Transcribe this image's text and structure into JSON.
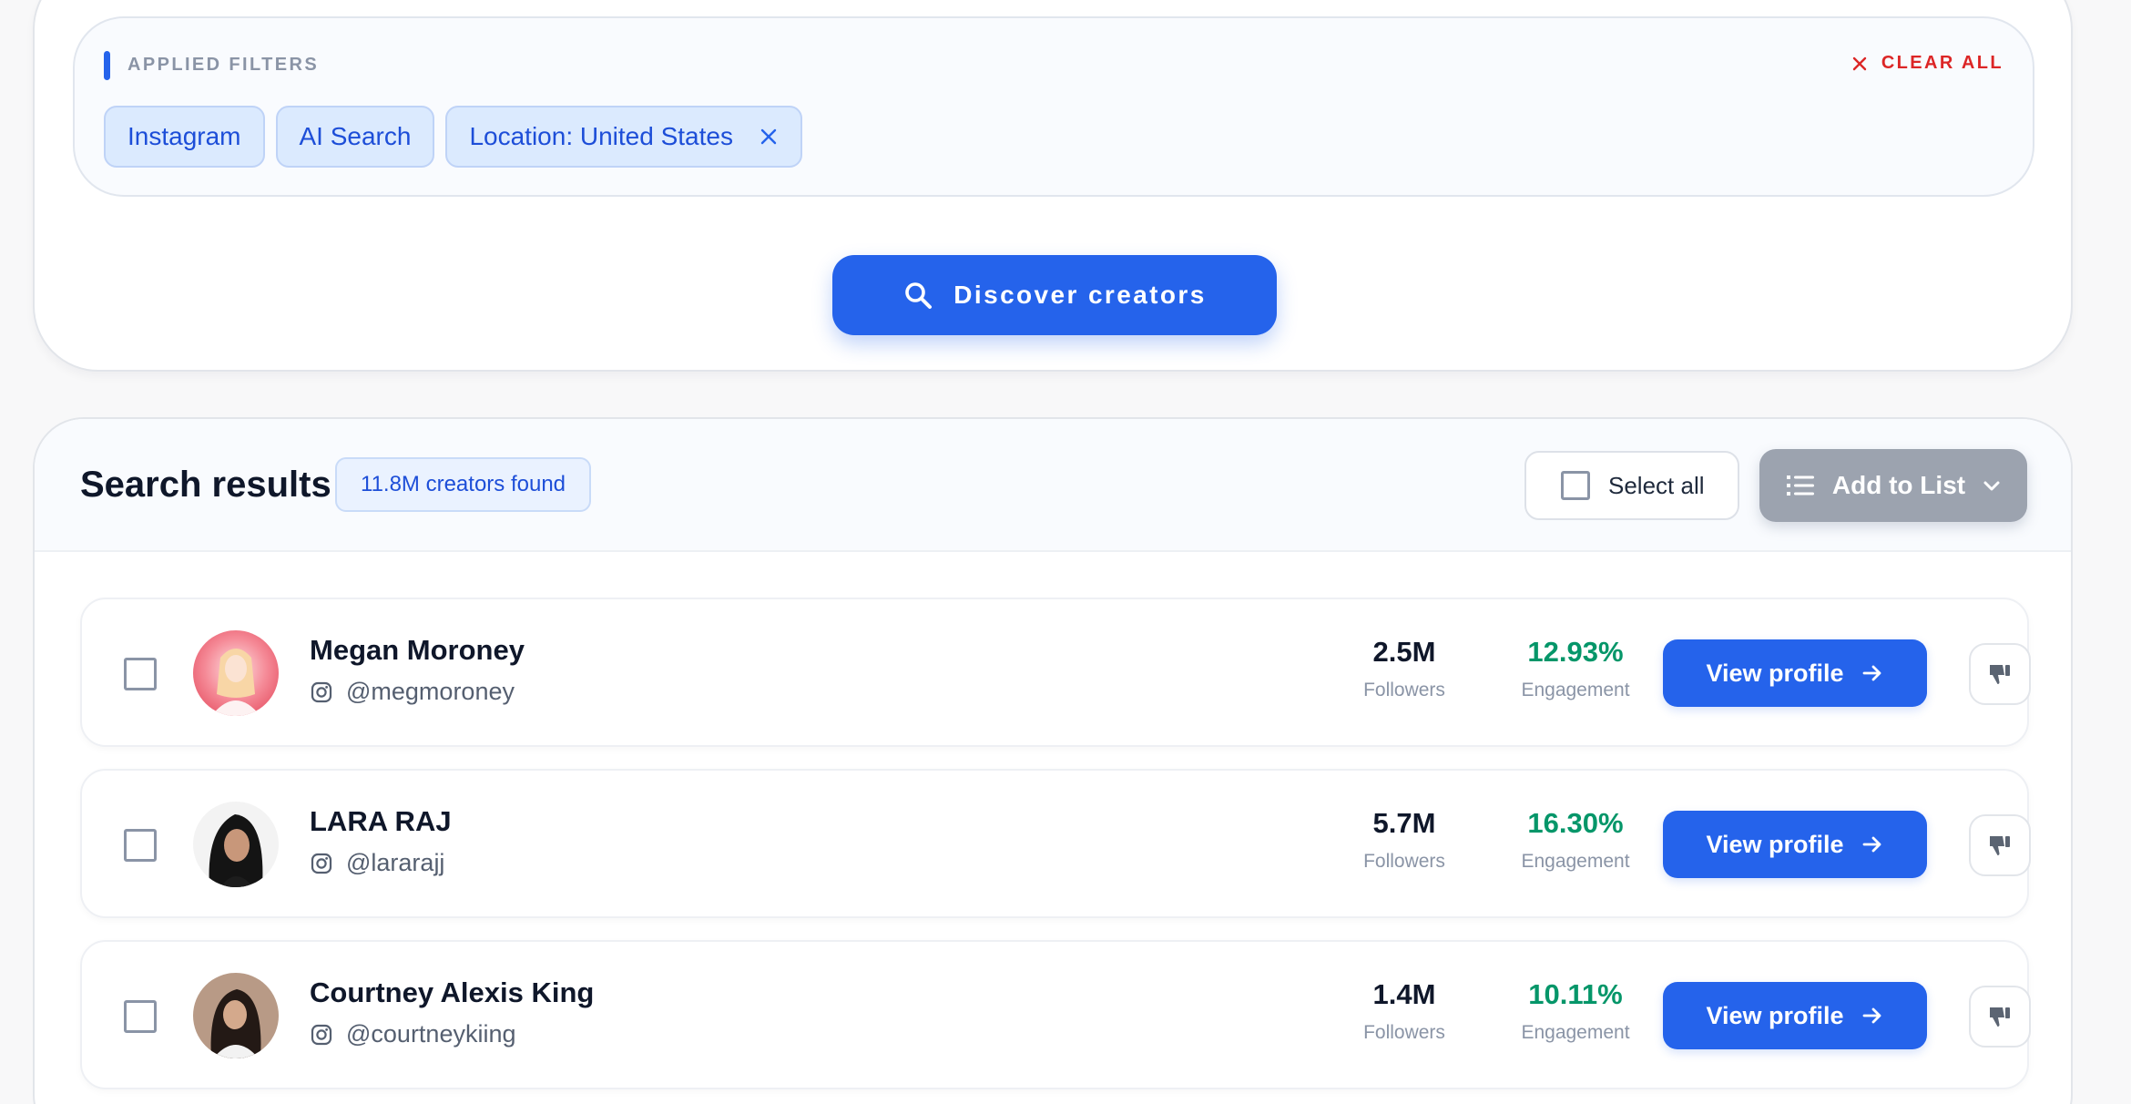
{
  "filters": {
    "heading": "APPLIED FILTERS",
    "clear_all": "CLEAR ALL",
    "chips": [
      {
        "label": "Instagram",
        "removable": false
      },
      {
        "label": "AI Search",
        "removable": false
      },
      {
        "label": "Location: United States",
        "removable": true
      }
    ]
  },
  "discover_button": "Discover creators",
  "results": {
    "title": "Search results",
    "count": "11.8M creators found",
    "select_all": "Select all",
    "add_to_list": "Add to List",
    "followers_label": "Followers",
    "engagement_label": "Engagement",
    "view_profile": "View profile",
    "creators": [
      {
        "name": "Megan Moroney",
        "handle": "@megmoroney",
        "platform": "instagram-icon",
        "followers": "2.5M",
        "engagement": "12.93%"
      },
      {
        "name": "LARA RAJ",
        "handle": "@lararajj",
        "platform": "instagram-icon",
        "followers": "5.7M",
        "engagement": "16.30%"
      },
      {
        "name": "Courtney Alexis King",
        "handle": "@courtneykiing",
        "platform": "instagram-icon",
        "followers": "1.4M",
        "engagement": "10.11%"
      }
    ]
  },
  "colors": {
    "primary": "#2563eb",
    "danger": "#dc2626",
    "success": "#059669",
    "disabled": "#9ca3af"
  }
}
